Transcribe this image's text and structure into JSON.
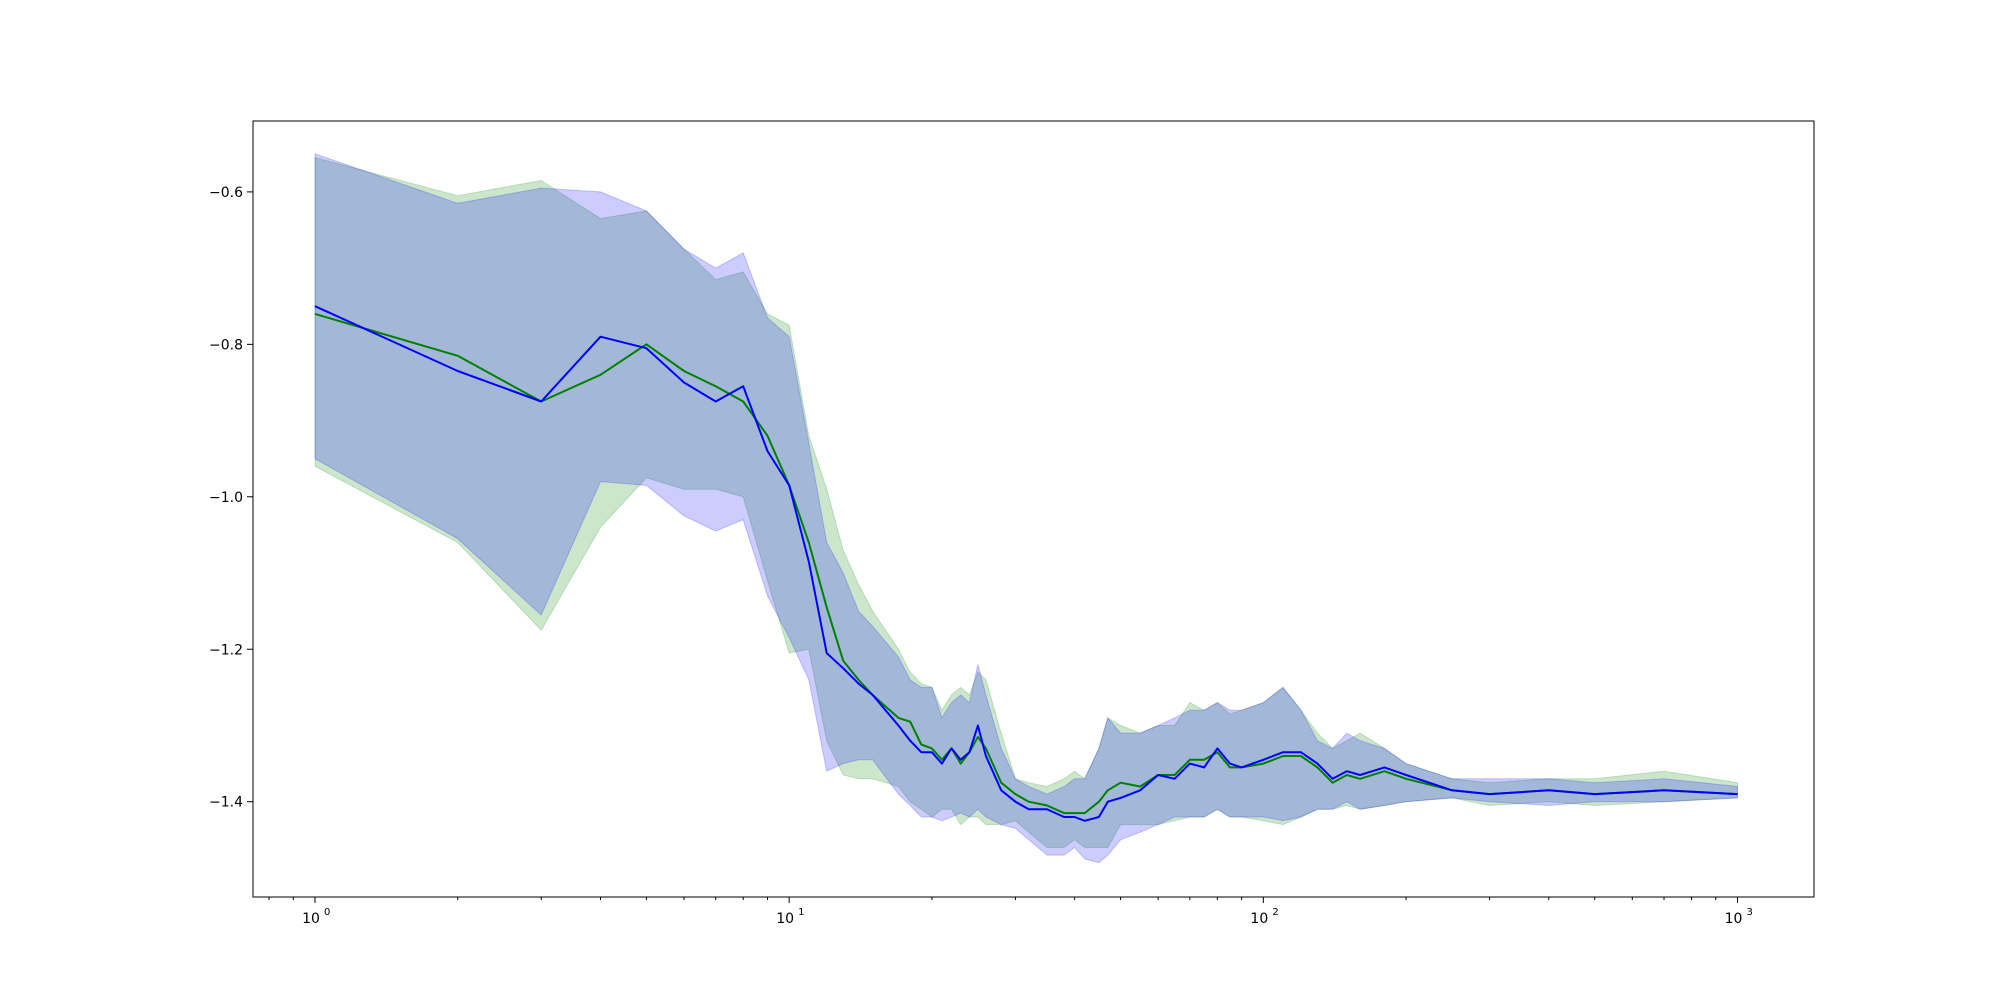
{
  "chart_data": {
    "type": "line",
    "title": "",
    "xlabel": "",
    "ylabel": "",
    "xscale": "log",
    "xlim": [
      0.74,
      1450
    ],
    "ylim": [
      -1.525,
      -0.507
    ],
    "grid": false,
    "legend": "none",
    "x_ticks": [
      {
        "value": 1,
        "base": "10",
        "exp": "0"
      },
      {
        "value": 10,
        "base": "10",
        "exp": "1"
      },
      {
        "value": 100,
        "base": "10",
        "exp": "2"
      },
      {
        "value": 1000,
        "base": "10",
        "exp": "3"
      }
    ],
    "y_ticks": [
      {
        "value": -0.6,
        "label": "−0.6"
      },
      {
        "value": -0.8,
        "label": "−0.8"
      },
      {
        "value": -1.0,
        "label": "−1.0"
      },
      {
        "value": -1.2,
        "label": "−1.2"
      },
      {
        "value": -1.4,
        "label": "−1.4"
      }
    ],
    "colors": {
      "green": "#008000",
      "blue": "#0000ff",
      "green_band": "#008000",
      "blue_band": "#0000ff"
    },
    "series": [
      {
        "color": "#008000",
        "x": [
          1,
          2,
          3,
          4,
          5,
          6,
          7,
          8,
          9,
          10,
          11,
          12,
          13,
          14,
          15,
          17,
          18,
          19,
          20,
          21,
          22,
          23,
          24,
          25,
          26,
          28,
          30,
          32,
          35,
          38,
          40,
          42,
          45,
          47,
          50,
          55,
          60,
          65,
          70,
          75,
          80,
          85,
          90,
          100,
          110,
          120,
          130,
          140,
          150,
          160,
          180,
          200,
          250,
          300,
          400,
          500,
          700,
          1000
        ],
        "y": [
          -0.76,
          -0.815,
          -0.875,
          -0.84,
          -0.8,
          -0.835,
          -0.855,
          -0.875,
          -0.92,
          -0.985,
          -1.06,
          -1.145,
          -1.215,
          -1.24,
          -1.26,
          -1.29,
          -1.295,
          -1.325,
          -1.33,
          -1.345,
          -1.33,
          -1.35,
          -1.335,
          -1.315,
          -1.33,
          -1.375,
          -1.39,
          -1.4,
          -1.405,
          -1.415,
          -1.415,
          -1.415,
          -1.4,
          -1.385,
          -1.375,
          -1.38,
          -1.365,
          -1.365,
          -1.345,
          -1.345,
          -1.335,
          -1.355,
          -1.355,
          -1.35,
          -1.34,
          -1.34,
          -1.355,
          -1.375,
          -1.365,
          -1.37,
          -1.36,
          -1.37,
          -1.385,
          -1.39,
          -1.385,
          -1.39,
          -1.385,
          -1.39
        ],
        "lower": [
          -0.96,
          -1.06,
          -1.175,
          -1.04,
          -0.975,
          -0.99,
          -0.99,
          -1.0,
          -1.11,
          -1.205,
          -1.2,
          -1.32,
          -1.365,
          -1.37,
          -1.37,
          -1.38,
          -1.4,
          -1.41,
          -1.42,
          -1.41,
          -1.41,
          -1.43,
          -1.42,
          -1.42,
          -1.43,
          -1.43,
          -1.425,
          -1.44,
          -1.46,
          -1.46,
          -1.45,
          -1.46,
          -1.46,
          -1.46,
          -1.43,
          -1.43,
          -1.43,
          -1.425,
          -1.42,
          -1.42,
          -1.41,
          -1.42,
          -1.42,
          -1.425,
          -1.43,
          -1.42,
          -1.41,
          -1.41,
          -1.405,
          -1.41,
          -1.405,
          -1.4,
          -1.395,
          -1.405,
          -1.4,
          -1.405,
          -1.4,
          -1.395
        ],
        "upper": [
          -0.555,
          -0.605,
          -0.585,
          -0.635,
          -0.625,
          -0.675,
          -0.715,
          -0.705,
          -0.76,
          -0.775,
          -0.92,
          -0.99,
          -1.07,
          -1.115,
          -1.15,
          -1.2,
          -1.23,
          -1.245,
          -1.25,
          -1.28,
          -1.26,
          -1.25,
          -1.26,
          -1.23,
          -1.24,
          -1.31,
          -1.37,
          -1.375,
          -1.38,
          -1.37,
          -1.36,
          -1.37,
          -1.33,
          -1.29,
          -1.3,
          -1.31,
          -1.3,
          -1.3,
          -1.27,
          -1.28,
          -1.27,
          -1.285,
          -1.28,
          -1.27,
          -1.25,
          -1.28,
          -1.31,
          -1.33,
          -1.32,
          -1.31,
          -1.33,
          -1.35,
          -1.37,
          -1.375,
          -1.37,
          -1.37,
          -1.36,
          -1.375
        ]
      },
      {
        "color": "#0000ff",
        "x": [
          1,
          2,
          3,
          4,
          5,
          6,
          7,
          8,
          9,
          10,
          11,
          12,
          13,
          14,
          15,
          17,
          18,
          19,
          20,
          21,
          22,
          23,
          24,
          25,
          26,
          28,
          30,
          32,
          35,
          38,
          40,
          42,
          45,
          47,
          50,
          55,
          60,
          65,
          70,
          75,
          80,
          85,
          90,
          100,
          110,
          120,
          130,
          140,
          150,
          160,
          180,
          200,
          250,
          300,
          400,
          500,
          700,
          1000
        ],
        "y": [
          -0.75,
          -0.835,
          -0.875,
          -0.79,
          -0.805,
          -0.85,
          -0.875,
          -0.855,
          -0.94,
          -0.985,
          -1.085,
          -1.205,
          -1.225,
          -1.245,
          -1.26,
          -1.3,
          -1.32,
          -1.335,
          -1.335,
          -1.35,
          -1.33,
          -1.345,
          -1.335,
          -1.3,
          -1.34,
          -1.385,
          -1.4,
          -1.41,
          -1.41,
          -1.42,
          -1.42,
          -1.425,
          -1.42,
          -1.4,
          -1.395,
          -1.385,
          -1.365,
          -1.37,
          -1.35,
          -1.355,
          -1.33,
          -1.35,
          -1.355,
          -1.345,
          -1.335,
          -1.335,
          -1.35,
          -1.37,
          -1.36,
          -1.365,
          -1.355,
          -1.365,
          -1.385,
          -1.39,
          -1.385,
          -1.39,
          -1.385,
          -1.39
        ],
        "lower": [
          -0.95,
          -1.055,
          -1.155,
          -0.98,
          -0.985,
          -1.025,
          -1.045,
          -1.03,
          -1.13,
          -1.185,
          -1.24,
          -1.36,
          -1.35,
          -1.345,
          -1.345,
          -1.39,
          -1.405,
          -1.42,
          -1.42,
          -1.425,
          -1.42,
          -1.415,
          -1.42,
          -1.41,
          -1.42,
          -1.43,
          -1.435,
          -1.45,
          -1.47,
          -1.47,
          -1.46,
          -1.475,
          -1.48,
          -1.47,
          -1.45,
          -1.44,
          -1.43,
          -1.42,
          -1.42,
          -1.42,
          -1.41,
          -1.42,
          -1.42,
          -1.42,
          -1.425,
          -1.42,
          -1.41,
          -1.41,
          -1.4,
          -1.41,
          -1.405,
          -1.4,
          -1.395,
          -1.4,
          -1.405,
          -1.4,
          -1.4,
          -1.395
        ],
        "upper": [
          -0.55,
          -0.615,
          -0.595,
          -0.6,
          -0.625,
          -0.675,
          -0.7,
          -0.68,
          -0.765,
          -0.79,
          -0.93,
          -1.06,
          -1.1,
          -1.15,
          -1.17,
          -1.21,
          -1.24,
          -1.25,
          -1.25,
          -1.29,
          -1.27,
          -1.26,
          -1.27,
          -1.22,
          -1.26,
          -1.33,
          -1.37,
          -1.38,
          -1.39,
          -1.38,
          -1.37,
          -1.37,
          -1.33,
          -1.29,
          -1.31,
          -1.31,
          -1.3,
          -1.29,
          -1.28,
          -1.28,
          -1.27,
          -1.28,
          -1.28,
          -1.27,
          -1.25,
          -1.28,
          -1.32,
          -1.33,
          -1.31,
          -1.32,
          -1.33,
          -1.35,
          -1.37,
          -1.37,
          -1.37,
          -1.375,
          -1.37,
          -1.38
        ]
      }
    ]
  }
}
